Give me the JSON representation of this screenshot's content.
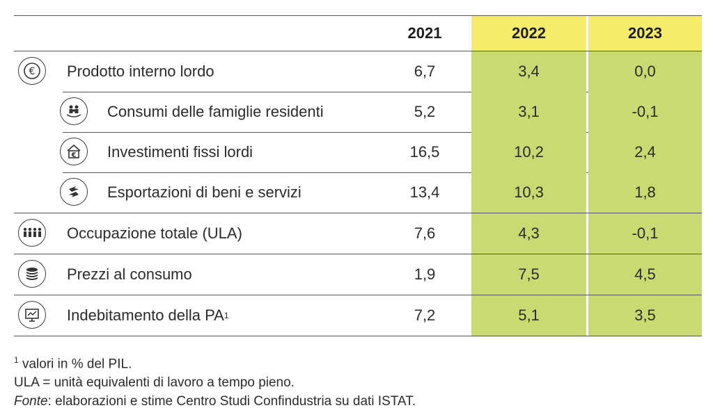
{
  "header": {
    "y2021": "2021",
    "y2022": "2022",
    "y2023": "2023"
  },
  "rows": [
    {
      "label": "Prodotto interno lordo",
      "icon": "euro-icon",
      "v2021": "6,7",
      "v2022": "3,4",
      "v2023": "0,0"
    },
    {
      "label": "Consumi delle famiglie residenti",
      "icon": "family-icon",
      "v2021": "5,2",
      "v2022": "3,1",
      "v2023": "-0,1"
    },
    {
      "label": "Investimenti fissi lordi",
      "icon": "investment-house-icon",
      "v2021": "16,5",
      "v2022": "10,2",
      "v2023": "2,4"
    },
    {
      "label": "Esportazioni di beni e servizi",
      "icon": "export-arrows-icon",
      "v2021": "13,4",
      "v2022": "10,3",
      "v2023": "1,8"
    },
    {
      "label": "Occupazione totale (ULA)",
      "icon": "workers-icon",
      "v2021": "7,6",
      "v2022": "4,3",
      "v2023": "-0,1"
    },
    {
      "label": "Prezzi al consumo",
      "icon": "coins-stack-icon",
      "v2021": "1,9",
      "v2022": "7,5",
      "v2023": "4,5"
    },
    {
      "label": "Indebitamento della PA",
      "label_sup": "1",
      "icon": "monitor-chart-icon",
      "v2021": "7,2",
      "v2022": "5,1",
      "v2023": "3,5"
    }
  ],
  "notes": {
    "note1_sup": "1",
    "note1": " valori in % del PIL.",
    "note2": "ULA = unità equivalenti di lavoro a tempo pieno.",
    "source_label": "Fonte",
    "source_text": ": elaborazioni e stime Centro Studi Confindustria su dati ISTAT."
  }
}
